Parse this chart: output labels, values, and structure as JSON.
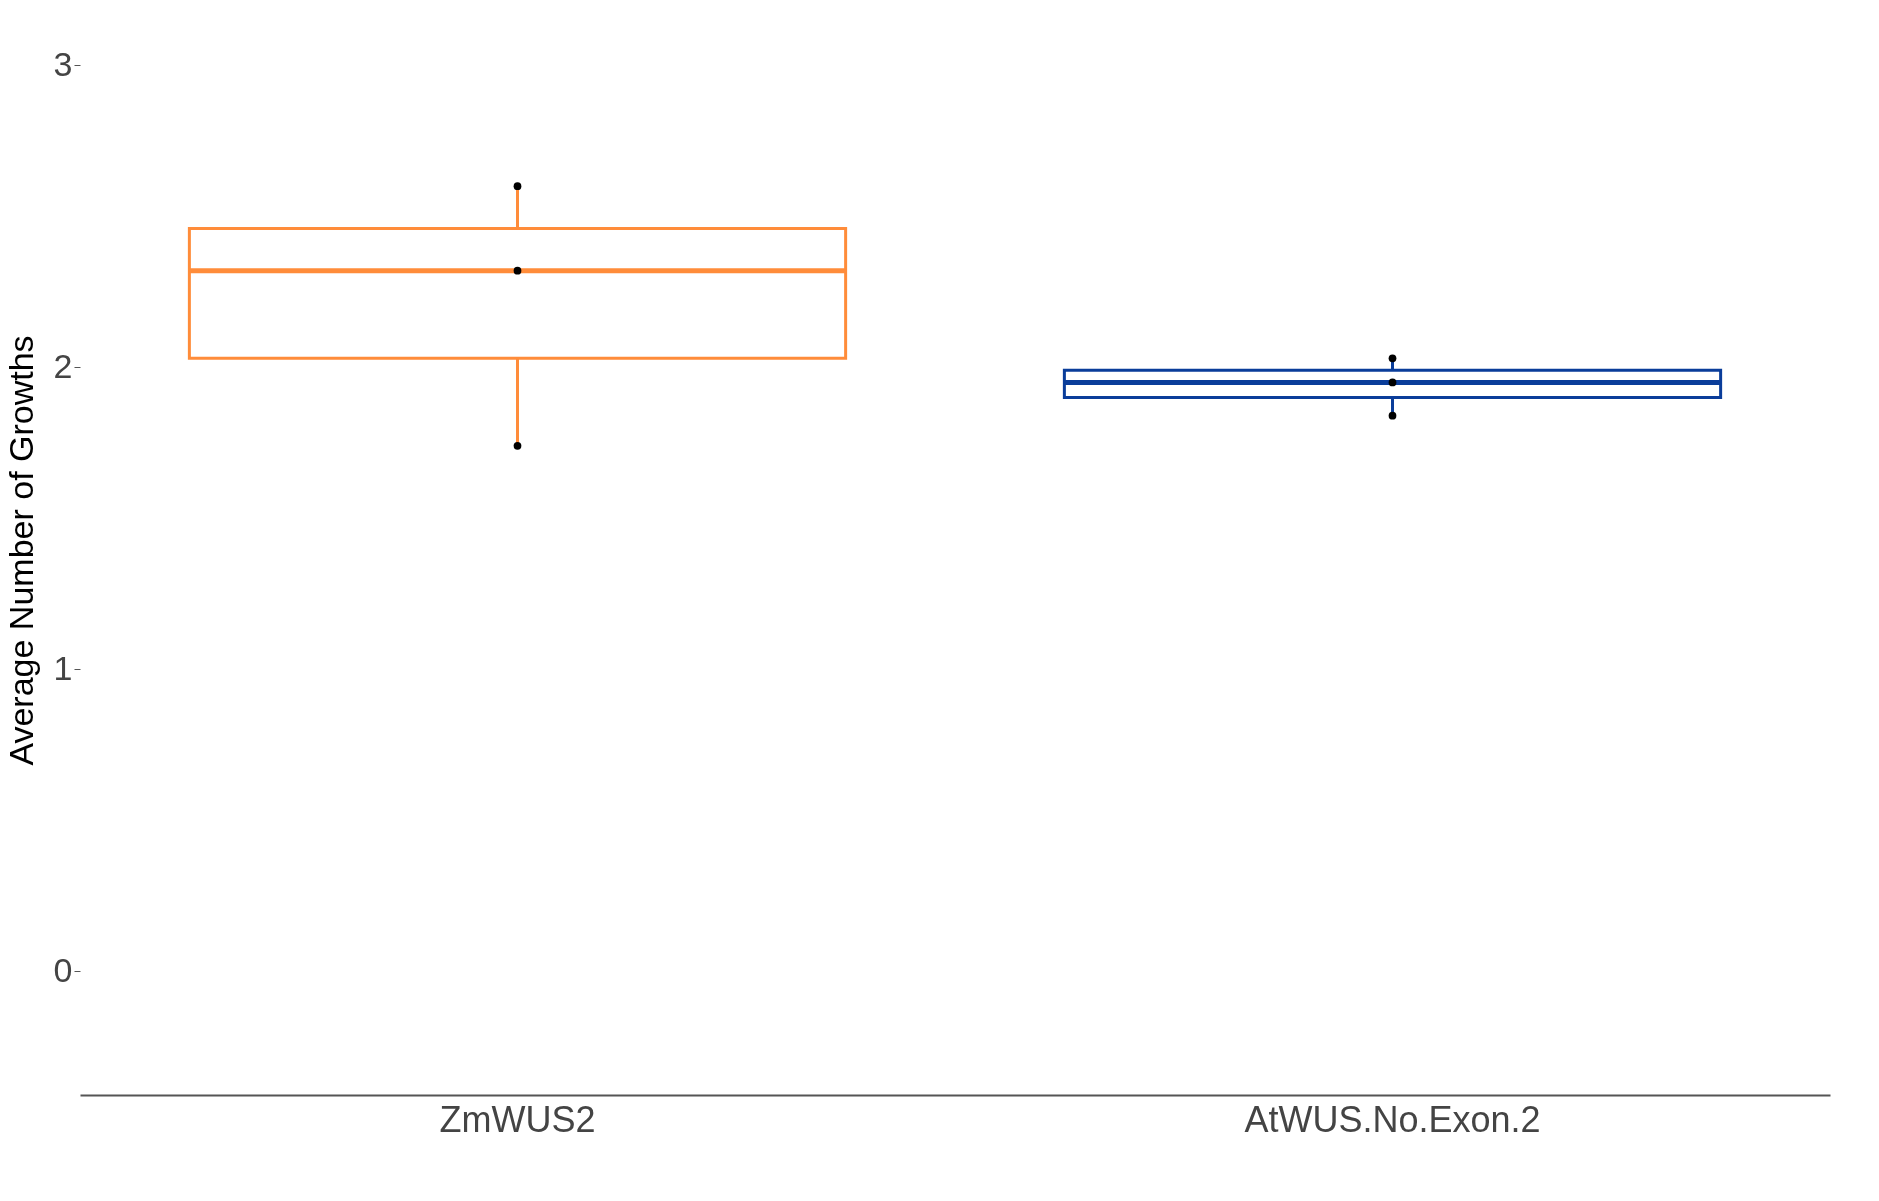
{
  "chart_data": {
    "type": "box",
    "ylabel": "Average Number of Growths",
    "categories": [
      "ZmWUS2",
      "AtWUS.No.Exon.2"
    ],
    "boxes": [
      {
        "low": 1.74,
        "q1": 2.03,
        "median": 2.32,
        "q3": 2.46,
        "high": 2.6
      },
      {
        "low": 1.84,
        "q1": 1.9,
        "median": 1.95,
        "q3": 1.99,
        "high": 2.03
      }
    ],
    "colors": [
      "#ff8c3a",
      "#0a3d9a"
    ],
    "series": [
      {
        "type": "scatter",
        "color": "#000000",
        "x": [
          "ZmWUS2",
          "ZmWUS2",
          "ZmWUS2",
          "AtWUS.No.Exon.2",
          "AtWUS.No.Exon.2",
          "AtWUS.No.Exon.2"
        ],
        "values": [
          2.6,
          2.32,
          1.74,
          2.03,
          1.95,
          1.84
        ]
      }
    ],
    "ylim": [
      -0.41,
      3.2
    ],
    "yticks": [
      0,
      1,
      2,
      3
    ],
    "grid": false
  }
}
